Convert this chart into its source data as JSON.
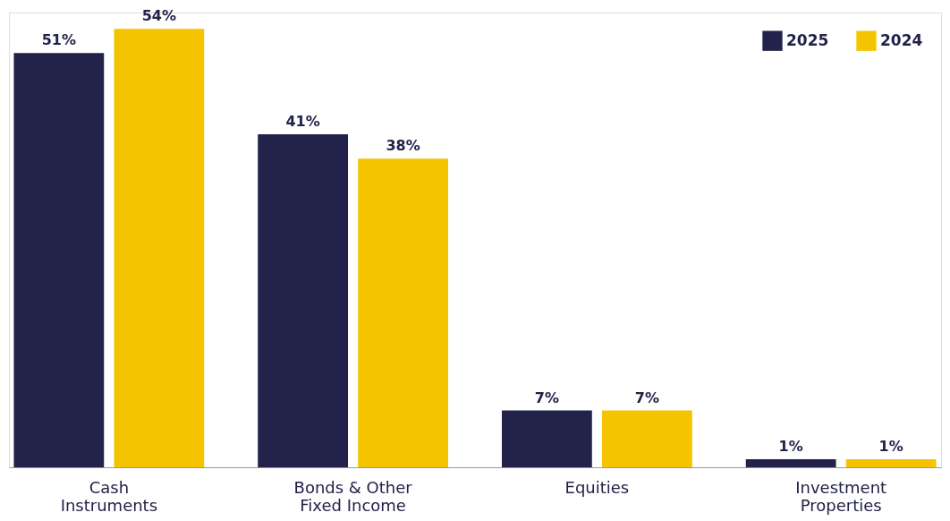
{
  "chart_data": {
    "type": "bar",
    "categories": [
      "Cash Instruments",
      "Bonds & Other Fixed Income",
      "Equities",
      "Investment Properties"
    ],
    "series": [
      {
        "name": "2025",
        "color": "#22224a",
        "values": [
          51,
          41,
          7,
          1
        ],
        "value_labels": [
          "51%",
          "41%",
          "7%",
          "1%"
        ]
      },
      {
        "name": "2024",
        "color": "#f5c400",
        "values": [
          54,
          38,
          7,
          1
        ],
        "value_labels": [
          "54%",
          "38%",
          "7%",
          "1%"
        ]
      }
    ],
    "ylim": [
      0,
      56
    ],
    "tick_labels": "x",
    "grid": false,
    "legend": "top right"
  }
}
